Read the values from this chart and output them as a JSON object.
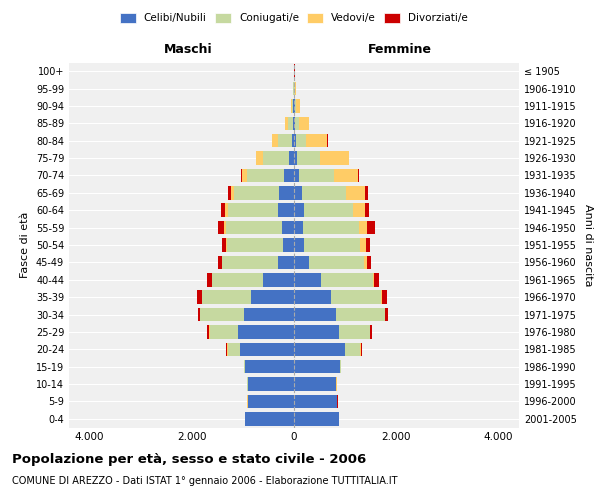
{
  "age_groups": [
    "0-4",
    "5-9",
    "10-14",
    "15-19",
    "20-24",
    "25-29",
    "30-34",
    "35-39",
    "40-44",
    "45-49",
    "50-54",
    "55-59",
    "60-64",
    "65-69",
    "70-74",
    "75-79",
    "80-84",
    "85-89",
    "90-94",
    "95-99",
    "100+"
  ],
  "birth_years": [
    "2001-2005",
    "1996-2000",
    "1991-1995",
    "1986-1990",
    "1981-1985",
    "1976-1980",
    "1971-1975",
    "1966-1970",
    "1961-1965",
    "1956-1960",
    "1951-1955",
    "1946-1950",
    "1941-1945",
    "1936-1940",
    "1931-1935",
    "1926-1930",
    "1921-1925",
    "1916-1920",
    "1911-1915",
    "1906-1910",
    "≤ 1905"
  ],
  "maschi": {
    "celibi": [
      950,
      900,
      900,
      950,
      1050,
      1100,
      980,
      850,
      600,
      320,
      210,
      230,
      310,
      290,
      200,
      90,
      45,
      22,
      10,
      5,
      2
    ],
    "coniugati": [
      5,
      8,
      10,
      20,
      250,
      550,
      850,
      950,
      1000,
      1080,
      1100,
      1100,
      980,
      880,
      720,
      510,
      260,
      100,
      30,
      10,
      2
    ],
    "vedovi": [
      2,
      2,
      2,
      2,
      5,
      8,
      10,
      8,
      8,
      15,
      25,
      35,
      50,
      70,
      90,
      140,
      120,
      60,
      20,
      5,
      2
    ],
    "divorziati": [
      2,
      2,
      2,
      5,
      20,
      35,
      45,
      80,
      90,
      80,
      80,
      130,
      80,
      55,
      20,
      10,
      5,
      3,
      2,
      1,
      1
    ]
  },
  "femmine": {
    "nubili": [
      880,
      840,
      820,
      900,
      1000,
      880,
      820,
      730,
      520,
      290,
      200,
      180,
      200,
      160,
      100,
      50,
      30,
      15,
      10,
      5,
      2
    ],
    "coniugate": [
      5,
      8,
      10,
      20,
      300,
      600,
      950,
      980,
      1020,
      1080,
      1100,
      1100,
      960,
      850,
      680,
      460,
      200,
      80,
      25,
      8,
      2
    ],
    "vedove": [
      2,
      2,
      2,
      2,
      5,
      10,
      15,
      20,
      30,
      60,
      100,
      150,
      220,
      380,
      480,
      560,
      420,
      200,
      80,
      20,
      5
    ],
    "divorziate": [
      2,
      2,
      2,
      5,
      20,
      30,
      50,
      90,
      100,
      80,
      90,
      150,
      80,
      60,
      20,
      15,
      8,
      5,
      2,
      1,
      1
    ]
  },
  "colors": {
    "celibi": "#4472C4",
    "coniugati": "#C6D9A0",
    "vedovi": "#FFCC66",
    "divorziati": "#CC0000"
  },
  "xlim": 4400,
  "xticks": [
    -4000,
    -2000,
    0,
    2000,
    4000
  ],
  "xlabels": [
    "4.000",
    "2.000",
    "0",
    "2.000",
    "4.000"
  ],
  "title": "Popolazione per età, sesso e stato civile - 2006",
  "subtitle": "COMUNE DI AREZZO - Dati ISTAT 1° gennaio 2006 - Elaborazione TUTTITALIA.IT",
  "ylabel_left": "Fasce di età",
  "ylabel_right": "Anni di nascita",
  "label_maschi": "Maschi",
  "label_femmine": "Femmine",
  "bg_color": "#FFFFFF",
  "plot_bg_color": "#F0F0F0",
  "legend_labels": [
    "Celibi/Nubili",
    "Coniugati/e",
    "Vedovi/e",
    "Divorziati/e"
  ]
}
